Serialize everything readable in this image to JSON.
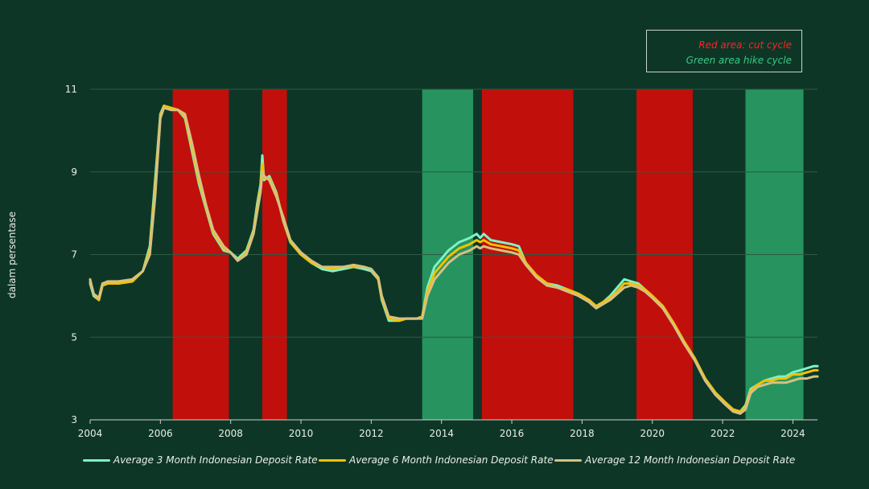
{
  "colors": {
    "background": "#0e3626",
    "cut": "#c10f0c",
    "hike": "#27935f",
    "grid": "#2e5a44",
    "series3": "#7cf2c9",
    "series6": "#f2c200",
    "series12": "#d7c083"
  },
  "annotations": {
    "cut_label": "Red area: cut cycle",
    "hike_label": "Green area hike cycle"
  },
  "chart_data": {
    "type": "line",
    "ylabel": "dalam persentase",
    "xlim": [
      2004,
      2024.7
    ],
    "ylim": [
      3,
      11
    ],
    "x_ticks": [
      "2004",
      "2006",
      "2008",
      "2010",
      "2012",
      "2014",
      "2016",
      "2018",
      "2020",
      "2022",
      "2024"
    ],
    "y_ticks": [
      "3",
      "5",
      "7",
      "9",
      "11"
    ],
    "grid": "horizontal",
    "cut_cycles": [
      [
        2006.35,
        2007.95
      ],
      [
        2008.9,
        2009.6
      ],
      [
        2015.15,
        2017.75
      ],
      [
        2019.55,
        2021.15
      ]
    ],
    "hike_cycles": [
      [
        2013.45,
        2014.9
      ],
      [
        2022.65,
        2024.3
      ]
    ],
    "series": [
      {
        "name": "Average 3 Month Indonesian Deposit Rate",
        "color": "#7cf2c9",
        "x": [
          2004.0,
          2004.1,
          2004.25,
          2004.35,
          2004.5,
          2004.8,
          2005.2,
          2005.5,
          2005.7,
          2005.85,
          2006.0,
          2006.1,
          2006.3,
          2006.5,
          2006.7,
          2006.9,
          2007.1,
          2007.3,
          2007.5,
          2007.8,
          2008.0,
          2008.2,
          2008.45,
          2008.65,
          2008.75,
          2008.85,
          2008.9,
          2008.95,
          2009.1,
          2009.3,
          2009.5,
          2009.7,
          2010.0,
          2010.3,
          2010.6,
          2010.9,
          2011.2,
          2011.5,
          2011.8,
          2012.0,
          2012.2,
          2012.3,
          2012.5,
          2012.8,
          2013.0,
          2013.3,
          2013.45,
          2013.6,
          2013.8,
          2014.0,
          2014.2,
          2014.5,
          2014.8,
          2015.0,
          2015.1,
          2015.2,
          2015.4,
          2015.7,
          2016.0,
          2016.2,
          2016.4,
          2016.7,
          2017.0,
          2017.3,
          2017.6,
          2017.9,
          2018.2,
          2018.4,
          2018.6,
          2018.8,
          2019.0,
          2019.2,
          2019.4,
          2019.6,
          2019.8,
          2020.0,
          2020.3,
          2020.6,
          2020.9,
          2021.2,
          2021.5,
          2021.8,
          2022.1,
          2022.3,
          2022.5,
          2022.65,
          2022.8,
          2023.0,
          2023.2,
          2023.4,
          2023.6,
          2023.8,
          2024.0,
          2024.2,
          2024.4,
          2024.6,
          2024.7
        ],
        "values": [
          6.3,
          6.0,
          5.9,
          6.25,
          6.3,
          6.3,
          6.35,
          6.6,
          7.2,
          8.8,
          10.4,
          10.6,
          10.55,
          10.5,
          10.3,
          9.5,
          8.7,
          8.1,
          7.5,
          7.1,
          7.05,
          6.9,
          7.1,
          7.6,
          8.2,
          8.7,
          9.4,
          8.8,
          8.9,
          8.5,
          7.8,
          7.3,
          7.0,
          6.8,
          6.65,
          6.6,
          6.65,
          6.7,
          6.65,
          6.6,
          6.4,
          5.9,
          5.4,
          5.4,
          5.45,
          5.45,
          5.5,
          6.2,
          6.7,
          6.9,
          7.1,
          7.3,
          7.4,
          7.5,
          7.4,
          7.5,
          7.35,
          7.3,
          7.25,
          7.2,
          6.8,
          6.5,
          6.3,
          6.25,
          6.15,
          6.05,
          5.9,
          5.75,
          5.85,
          6.0,
          6.2,
          6.4,
          6.35,
          6.3,
          6.15,
          6.0,
          5.75,
          5.35,
          4.9,
          4.5,
          4.0,
          3.65,
          3.4,
          3.25,
          3.2,
          3.35,
          3.75,
          3.85,
          3.95,
          4.0,
          4.05,
          4.05,
          4.15,
          4.2,
          4.25,
          4.3,
          4.3
        ]
      },
      {
        "name": "Average 6 Month Indonesian Deposit Rate",
        "color": "#f2c200",
        "x": [
          2004.0,
          2004.1,
          2004.25,
          2004.35,
          2004.5,
          2004.8,
          2005.2,
          2005.5,
          2005.7,
          2005.85,
          2006.0,
          2006.1,
          2006.3,
          2006.5,
          2006.7,
          2006.9,
          2007.1,
          2007.3,
          2007.5,
          2007.8,
          2008.0,
          2008.2,
          2008.45,
          2008.65,
          2008.75,
          2008.85,
          2008.9,
          2008.95,
          2009.1,
          2009.3,
          2009.5,
          2009.7,
          2010.0,
          2010.3,
          2010.6,
          2010.9,
          2011.2,
          2011.5,
          2011.8,
          2012.0,
          2012.2,
          2012.3,
          2012.5,
          2012.8,
          2013.0,
          2013.3,
          2013.45,
          2013.6,
          2013.8,
          2014.0,
          2014.2,
          2014.5,
          2014.8,
          2015.0,
          2015.1,
          2015.2,
          2015.4,
          2015.7,
          2016.0,
          2016.2,
          2016.4,
          2016.7,
          2017.0,
          2017.3,
          2017.6,
          2017.9,
          2018.2,
          2018.4,
          2018.6,
          2018.8,
          2019.0,
          2019.2,
          2019.4,
          2019.6,
          2019.8,
          2020.0,
          2020.3,
          2020.6,
          2020.9,
          2021.2,
          2021.5,
          2021.8,
          2022.1,
          2022.3,
          2022.5,
          2022.65,
          2022.8,
          2023.0,
          2023.2,
          2023.4,
          2023.6,
          2023.8,
          2024.0,
          2024.2,
          2024.4,
          2024.6,
          2024.7
        ],
        "values": [
          6.35,
          6.05,
          5.9,
          6.25,
          6.3,
          6.3,
          6.35,
          6.6,
          7.1,
          8.6,
          10.35,
          10.6,
          10.55,
          10.5,
          10.35,
          9.6,
          8.8,
          8.15,
          7.55,
          7.15,
          7.05,
          6.85,
          7.05,
          7.55,
          8.1,
          8.6,
          9.2,
          8.85,
          8.85,
          8.45,
          7.85,
          7.3,
          7.0,
          6.8,
          6.7,
          6.65,
          6.7,
          6.7,
          6.7,
          6.65,
          6.4,
          5.95,
          5.45,
          5.4,
          5.45,
          5.45,
          5.5,
          6.1,
          6.55,
          6.75,
          6.95,
          7.15,
          7.25,
          7.35,
          7.3,
          7.35,
          7.25,
          7.2,
          7.15,
          7.1,
          6.8,
          6.5,
          6.3,
          6.2,
          6.15,
          6.05,
          5.9,
          5.75,
          5.85,
          5.95,
          6.1,
          6.3,
          6.3,
          6.25,
          6.15,
          6.0,
          5.75,
          5.35,
          4.9,
          4.5,
          4.0,
          3.65,
          3.4,
          3.25,
          3.2,
          3.3,
          3.7,
          3.85,
          3.95,
          3.95,
          4.0,
          4.0,
          4.1,
          4.1,
          4.15,
          4.2,
          4.2
        ]
      },
      {
        "name": "Average 12 Month Indonesian Deposit Rate",
        "color": "#d7c083",
        "x": [
          2004.0,
          2004.1,
          2004.25,
          2004.35,
          2004.5,
          2004.8,
          2005.2,
          2005.5,
          2005.7,
          2005.85,
          2006.0,
          2006.1,
          2006.3,
          2006.5,
          2006.7,
          2006.9,
          2007.1,
          2007.3,
          2007.5,
          2007.8,
          2008.0,
          2008.2,
          2008.45,
          2008.65,
          2008.75,
          2008.85,
          2008.9,
          2008.95,
          2009.1,
          2009.3,
          2009.5,
          2009.7,
          2010.0,
          2010.3,
          2010.6,
          2010.9,
          2011.2,
          2011.5,
          2011.8,
          2012.0,
          2012.2,
          2012.3,
          2012.5,
          2012.8,
          2013.0,
          2013.3,
          2013.45,
          2013.6,
          2013.8,
          2014.0,
          2014.2,
          2014.5,
          2014.8,
          2015.0,
          2015.1,
          2015.2,
          2015.4,
          2015.7,
          2016.0,
          2016.2,
          2016.4,
          2016.7,
          2017.0,
          2017.3,
          2017.6,
          2017.9,
          2018.2,
          2018.4,
          2018.6,
          2018.8,
          2019.0,
          2019.2,
          2019.4,
          2019.6,
          2019.8,
          2020.0,
          2020.3,
          2020.6,
          2020.9,
          2021.2,
          2021.5,
          2021.8,
          2022.1,
          2022.3,
          2022.5,
          2022.65,
          2022.8,
          2023.0,
          2023.2,
          2023.4,
          2023.6,
          2023.8,
          2024.0,
          2024.2,
          2024.4,
          2024.6,
          2024.7
        ],
        "values": [
          6.4,
          6.05,
          5.95,
          6.3,
          6.35,
          6.35,
          6.4,
          6.6,
          7.0,
          8.4,
          10.3,
          10.55,
          10.5,
          10.5,
          10.4,
          9.7,
          8.9,
          8.2,
          7.6,
          7.2,
          7.05,
          6.85,
          7.0,
          7.5,
          8.0,
          8.5,
          9.0,
          8.9,
          8.8,
          8.4,
          7.9,
          7.35,
          7.05,
          6.85,
          6.7,
          6.7,
          6.7,
          6.75,
          6.7,
          6.65,
          6.45,
          6.0,
          5.5,
          5.45,
          5.45,
          5.45,
          5.45,
          6.0,
          6.4,
          6.6,
          6.8,
          7.0,
          7.1,
          7.2,
          7.15,
          7.2,
          7.15,
          7.1,
          7.05,
          7.0,
          6.75,
          6.45,
          6.25,
          6.2,
          6.1,
          6.0,
          5.85,
          5.7,
          5.8,
          5.9,
          6.05,
          6.2,
          6.25,
          6.2,
          6.1,
          5.95,
          5.7,
          5.3,
          4.85,
          4.45,
          3.95,
          3.6,
          3.35,
          3.2,
          3.15,
          3.25,
          3.65,
          3.8,
          3.85,
          3.9,
          3.9,
          3.9,
          3.95,
          4.0,
          4.0,
          4.05,
          4.05
        ]
      }
    ]
  }
}
